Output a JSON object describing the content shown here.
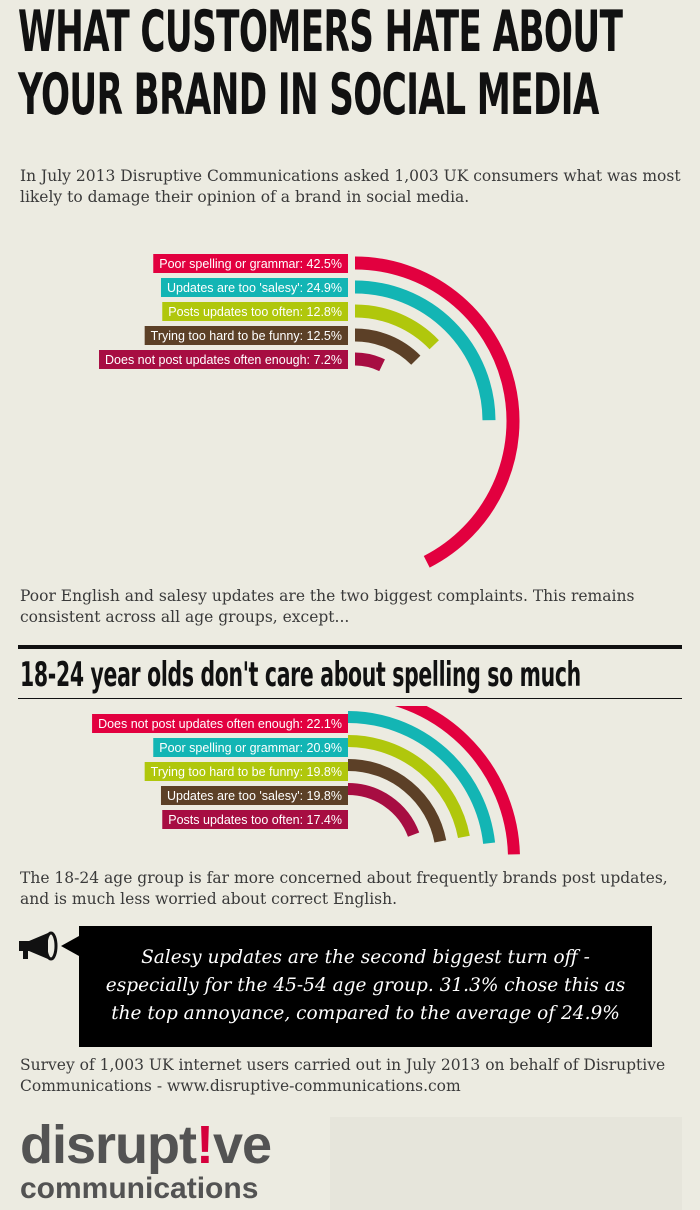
{
  "title": {
    "line1": "WHAT CUSTOMERS HATE ABOUT",
    "line2": "YOUR BRAND IN SOCIAL MEDIA"
  },
  "intro": "In July 2013 Disruptive Communications asked 1,003 UK consumers what was most likely to damage their opinion of a brand in social media.",
  "after_chart1": "Poor English and salesy updates are the two biggest complaints. This remains consistent across all age groups, except...",
  "subtitle": "18-24 year olds don't care about spelling so much",
  "after_chart2": "The 18-24 age group is far more concerned about frequently brands post updates, and is much less worried about correct English.",
  "quote": "Salesy updates are the second biggest turn off - especially for the 45-54 age group. 31.3% chose this as the top annoyance, compared to the average of 24.9%",
  "survey_note": "Survey of 1,003 UK internet users carried out in July 2013 on behalf of Disruptive Communications - www.disruptive-communications.com",
  "logo": {
    "part1": "disrupt",
    "bang": "!",
    "part2": "ve",
    "sub": "communications"
  },
  "icons": {
    "quote": "megaphone-icon"
  },
  "colors": {
    "background": "#ecebe1",
    "accent": "#d5003c",
    "text": "#3a3a3a"
  },
  "chart_data": [
    {
      "type": "radial-bar",
      "series": [
        {
          "label": "Poor spelling or grammar: 42.5%",
          "value": 42.5,
          "color": "#e2003f"
        },
        {
          "label": "Updates are too 'salesy': 24.9%",
          "value": 24.9,
          "color": "#13b5b4"
        },
        {
          "label": "Posts updates too often: 12.8%",
          "value": 12.8,
          "color": "#b0c70c"
        },
        {
          "label": "Trying too hard to be funny: 12.5%",
          "value": 12.5,
          "color": "#5c4027"
        },
        {
          "label": "Does not post updates often enough: 7.2%",
          "value": 7.2,
          "color": "#a70d42"
        }
      ]
    },
    {
      "type": "radial-bar",
      "series": [
        {
          "label": "Does not post updates often enough: 22.1%",
          "value": 22.1,
          "color": "#e2003f"
        },
        {
          "label": "Poor spelling or grammar: 20.9%",
          "value": 20.9,
          "color": "#13b5b4"
        },
        {
          "label": "Trying too hard to be funny: 19.8%",
          "value": 19.8,
          "color": "#b0c70c"
        },
        {
          "label": "Updates are too 'salesy': 19.8%",
          "value": 19.8,
          "color": "#5c4027"
        },
        {
          "label": "Posts updates too often: 17.4%",
          "value": 17.4,
          "color": "#a70d42"
        }
      ]
    }
  ]
}
